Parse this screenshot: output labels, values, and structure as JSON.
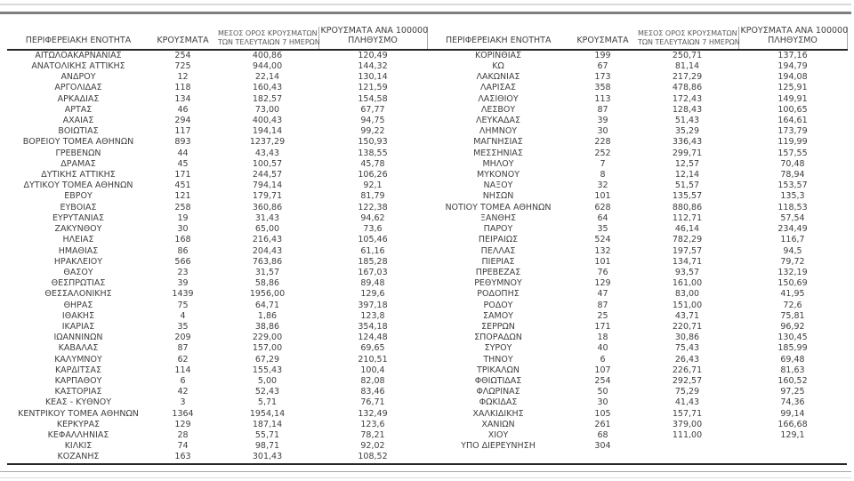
{
  "table": {
    "headers": {
      "region": "ΠΕΡΙΦΕΡΕΙΑΚΗ ΕΝΟΤΗΤΑ",
      "cases": "ΚΡΟΥΣΜΑΤΑ",
      "avg7_line1": "ΜΕΣΟΣ ΟΡΟΣ ΚΡΟΥΣΜΑΤΩΝ",
      "avg7_line2": "ΤΩΝ ΤΕΛΕΥΤΑΙΩΝ 7 ΗΜΕΡΩΝ",
      "per100k_line1": "ΚΡΟΥΣΜΑΤΑ ΑΝΑ 100000",
      "per100k_line2": "ΠΛΗΘΥΣΜΟ"
    },
    "left_rows": [
      [
        "ΑΙΤΩΛΟΑΚΑΡΝΑΝΙΑΣ",
        "254",
        "400,86",
        "120,49"
      ],
      [
        "ΑΝΑΤΟΛΙΚΗΣ ΑΤΤΙΚΗΣ",
        "725",
        "944,00",
        "144,32"
      ],
      [
        "ΑΝΔΡΟΥ",
        "12",
        "22,14",
        "130,14"
      ],
      [
        "ΑΡΓΟΛΙΔΑΣ",
        "118",
        "160,43",
        "121,59"
      ],
      [
        "ΑΡΚΑΔΙΑΣ",
        "134",
        "182,57",
        "154,58"
      ],
      [
        "ΑΡΤΑΣ",
        "46",
        "73,00",
        "67,77"
      ],
      [
        "ΑΧΑΪΑΣ",
        "294",
        "400,43",
        "94,75"
      ],
      [
        "ΒΟΙΩΤΙΑΣ",
        "117",
        "194,14",
        "99,22"
      ],
      [
        "ΒΟΡΕΙΟΥ ΤΟΜΕΑ ΑΘΗΝΩΝ",
        "893",
        "1237,29",
        "150,93"
      ],
      [
        "ΓΡΕΒΕΝΩΝ",
        "44",
        "43,43",
        "138,55"
      ],
      [
        "ΔΡΑΜΑΣ",
        "45",
        "100,57",
        "45,78"
      ],
      [
        "ΔΥΤΙΚΗΣ ΑΤΤΙΚΗΣ",
        "171",
        "244,57",
        "106,26"
      ],
      [
        "ΔΥΤΙΚΟΥ ΤΟΜΕΑ ΑΘΗΝΩΝ",
        "451",
        "794,14",
        "92,1"
      ],
      [
        "ΕΒΡΟΥ",
        "121",
        "179,71",
        "81,79"
      ],
      [
        "ΕΥΒΟΙΑΣ",
        "258",
        "360,86",
        "122,38"
      ],
      [
        "ΕΥΡΥΤΑΝΙΑΣ",
        "19",
        "31,43",
        "94,62"
      ],
      [
        "ΖΑΚΥΝΘΟΥ",
        "30",
        "65,00",
        "73,6"
      ],
      [
        "ΗΛΕΙΑΣ",
        "168",
        "216,43",
        "105,46"
      ],
      [
        "ΗΜΑΘΙΑΣ",
        "86",
        "204,43",
        "61,16"
      ],
      [
        "ΗΡΑΚΛΕΙΟΥ",
        "566",
        "763,86",
        "185,28"
      ],
      [
        "ΘΑΣΟΥ",
        "23",
        "31,57",
        "167,03"
      ],
      [
        "ΘΕΣΠΡΩΤΙΑΣ",
        "39",
        "58,86",
        "89,48"
      ],
      [
        "ΘΕΣΣΑΛΟΝΙΚΗΣ",
        "1439",
        "1956,00",
        "129,6"
      ],
      [
        "ΘΗΡΑΣ",
        "75",
        "64,71",
        "397,18"
      ],
      [
        "ΙΘΑΚΗΣ",
        "4",
        "1,86",
        "123,8"
      ],
      [
        "ΙΚΑΡΙΑΣ",
        "35",
        "38,86",
        "354,18"
      ],
      [
        "ΙΩΑΝΝΙΝΩΝ",
        "209",
        "229,00",
        "124,48"
      ],
      [
        "ΚΑΒΑΛΑΣ",
        "87",
        "157,00",
        "69,65"
      ],
      [
        "ΚΑΛΥΜΝΟΥ",
        "62",
        "67,29",
        "210,51"
      ],
      [
        "ΚΑΡΔΙΤΣΑΣ",
        "114",
        "155,43",
        "100,4"
      ],
      [
        "ΚΑΡΠΑΘΟΥ",
        "6",
        "5,00",
        "82,08"
      ],
      [
        "ΚΑΣΤΟΡΙΑΣ",
        "42",
        "52,43",
        "83,46"
      ],
      [
        "ΚΕΑΣ - ΚΥΘΝΟΥ",
        "3",
        "5,71",
        "76,71"
      ],
      [
        "ΚΕΝΤΡΙΚΟΥ ΤΟΜΕΑ ΑΘΗΝΩΝ",
        "1364",
        "1954,14",
        "132,49"
      ],
      [
        "ΚΕΡΚΥΡΑΣ",
        "129",
        "187,14",
        "123,6"
      ],
      [
        "ΚΕΦΑΛΛΗΝΙΑΣ",
        "28",
        "55,71",
        "78,21"
      ],
      [
        "ΚΙΛΚΙΣ",
        "74",
        "98,71",
        "92,02"
      ],
      [
        "ΚΟΖΑΝΗΣ",
        "163",
        "301,43",
        "108,52"
      ]
    ],
    "right_rows": [
      [
        "ΚΟΡΙΝΘΙΑΣ",
        "199",
        "250,71",
        "137,16"
      ],
      [
        "ΚΩ",
        "67",
        "81,14",
        "194,79"
      ],
      [
        "ΛΑΚΩΝΙΑΣ",
        "173",
        "217,29",
        "194,08"
      ],
      [
        "ΛΑΡΙΣΑΣ",
        "358",
        "478,86",
        "125,91"
      ],
      [
        "ΛΑΣΙΘΙΟΥ",
        "113",
        "172,43",
        "149,91"
      ],
      [
        "ΛΕΣΒΟΥ",
        "87",
        "128,43",
        "100,65"
      ],
      [
        "ΛΕΥΚΑΔΑΣ",
        "39",
        "51,43",
        "164,61"
      ],
      [
        "ΛΗΜΝΟΥ",
        "30",
        "35,29",
        "173,79"
      ],
      [
        "ΜΑΓΝΗΣΙΑΣ",
        "228",
        "336,43",
        "119,99"
      ],
      [
        "ΜΕΣΣΗΝΙΑΣ",
        "252",
        "299,71",
        "157,55"
      ],
      [
        "ΜΗΛΟΥ",
        "7",
        "12,57",
        "70,48"
      ],
      [
        "ΜΥΚΟΝΟΥ",
        "8",
        "12,14",
        "78,94"
      ],
      [
        "ΝΑΞΟΥ",
        "32",
        "51,57",
        "153,57"
      ],
      [
        "ΝΗΣΩΝ",
        "101",
        "135,57",
        "135,3"
      ],
      [
        "ΝΟΤΙΟΥ ΤΟΜΕΑ ΑΘΗΝΩΝ",
        "628",
        "880,86",
        "118,53"
      ],
      [
        "ΞΑΝΘΗΣ",
        "64",
        "112,71",
        "57,54"
      ],
      [
        "ΠΑΡΟΥ",
        "35",
        "46,14",
        "234,49"
      ],
      [
        "ΠΕΙΡΑΙΩΣ",
        "524",
        "782,29",
        "116,7"
      ],
      [
        "ΠΕΛΛΑΣ",
        "132",
        "197,57",
        "94,5"
      ],
      [
        "ΠΙΕΡΙΑΣ",
        "101",
        "134,71",
        "79,72"
      ],
      [
        "ΠΡΕΒΕΖΑΣ",
        "76",
        "93,57",
        "132,19"
      ],
      [
        "ΡΕΘΥΜΝΟΥ",
        "129",
        "161,00",
        "150,69"
      ],
      [
        "ΡΟΔΟΠΗΣ",
        "47",
        "83,00",
        "41,95"
      ],
      [
        "ΡΟΔΟΥ",
        "87",
        "151,00",
        "72,6"
      ],
      [
        "ΣΑΜΟΥ",
        "25",
        "43,71",
        "75,81"
      ],
      [
        "ΣΕΡΡΩΝ",
        "171",
        "220,71",
        "96,92"
      ],
      [
        "ΣΠΟΡΑΔΩΝ",
        "18",
        "30,86",
        "130,45"
      ],
      [
        "ΣΥΡΟΥ",
        "40",
        "75,43",
        "185,99"
      ],
      [
        "ΤΗΝΟΥ",
        "6",
        "26,43",
        "69,48"
      ],
      [
        "ΤΡΙΚΑΛΩΝ",
        "107",
        "226,71",
        "81,63"
      ],
      [
        "ΦΘΙΩΤΙΔΑΣ",
        "254",
        "292,57",
        "160,52"
      ],
      [
        "ΦΛΩΡΙΝΑΣ",
        "50",
        "75,29",
        "97,25"
      ],
      [
        "ΦΩΚΙΔΑΣ",
        "30",
        "41,43",
        "74,36"
      ],
      [
        "ΧΑΛΚΙΔΙΚΗΣ",
        "105",
        "157,71",
        "99,14"
      ],
      [
        "ΧΑΝΙΩΝ",
        "261",
        "379,00",
        "166,68"
      ],
      [
        "ΧΙΟΥ",
        "68",
        "111,00",
        "129,1"
      ],
      [
        "ΥΠΟ ΔΙΕΡΕΥΝΗΣΗ",
        "304",
        "",
        ""
      ]
    ]
  },
  "colors": {
    "text": "#404040",
    "header_underline": "#262626",
    "rule_light": "#d9d9d9",
    "rule_dark": "#7f7f7f",
    "rule_mid": "#a6a6a6",
    "background": "#ffffff"
  }
}
